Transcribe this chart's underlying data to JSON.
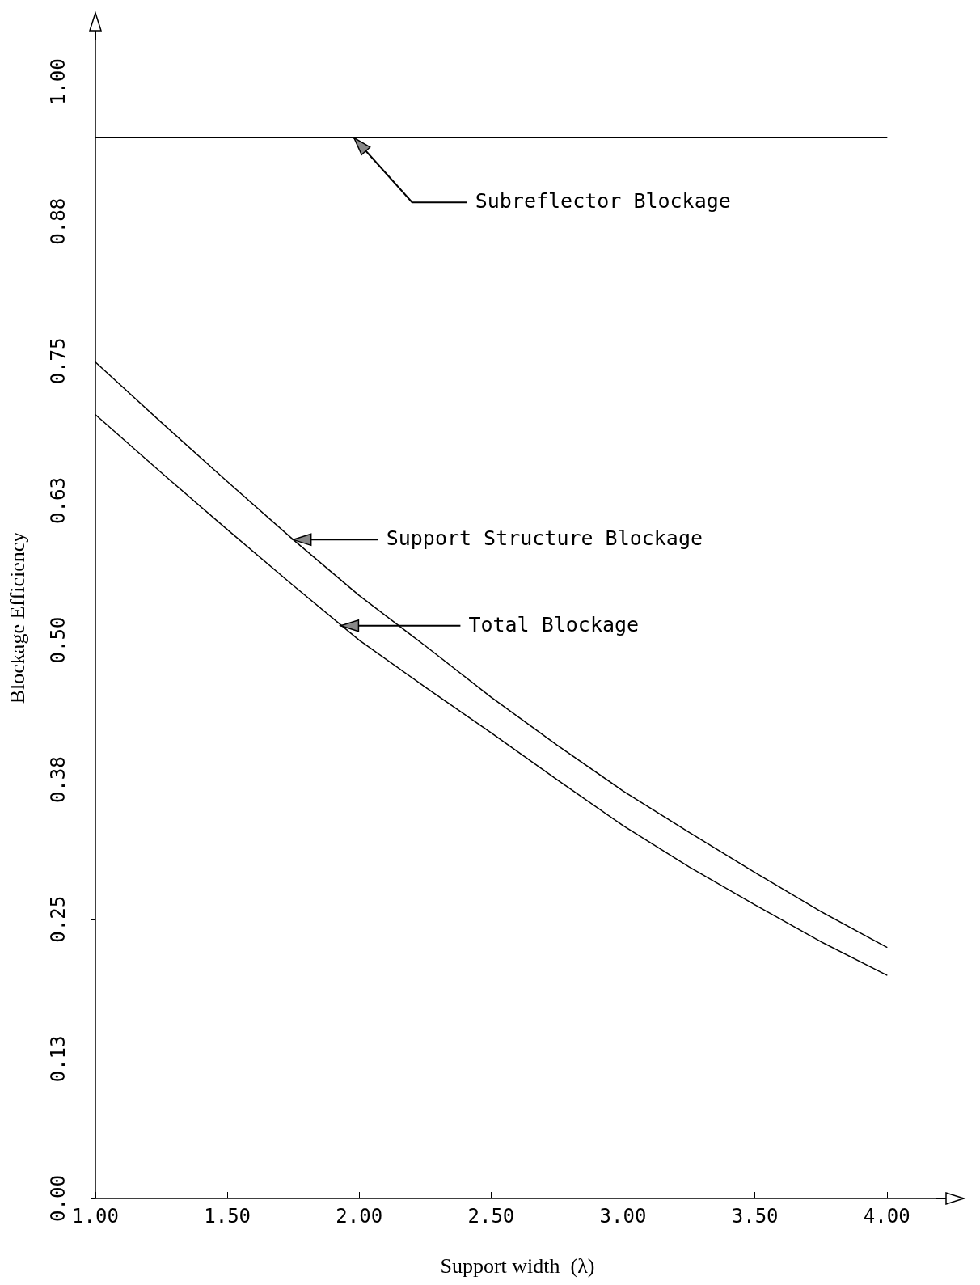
{
  "chart_data": {
    "type": "line",
    "xlabel": "Support width  (λ)",
    "ylabel": "Blockage Efficiency",
    "x": [
      1.0,
      1.25,
      1.5,
      1.75,
      2.0,
      2.25,
      2.5,
      2.75,
      3.0,
      3.25,
      3.5,
      3.75,
      4.0
    ],
    "series": [
      {
        "color": "#000000",
        "x": [
          1.0,
          4.0
        ],
        "values": [
          0.95,
          0.95
        ]
      },
      {
        "color": "#000000",
        "values": [
          0.749,
          0.695,
          0.642,
          0.59,
          0.54,
          0.495,
          0.449,
          0.406,
          0.365,
          0.328,
          0.292,
          0.257,
          0.225
        ]
      },
      {
        "color": "#000000",
        "values": [
          0.702,
          0.65,
          0.599,
          0.549,
          0.5,
          0.458,
          0.417,
          0.375,
          0.334,
          0.297,
          0.263,
          0.23,
          0.2
        ]
      }
    ],
    "annotations": [
      {
        "text": "Subreflector Blockage",
        "x": 1.98,
        "y": 0.95
      },
      "Support Structure Blockage",
      {
        "text": "Total Blockage",
        "x": 1.93,
        "y": 0.513
      }
    ],
    "xlim": [
      1.0,
      4.2
    ],
    "xticks": [
      {
        "value": 1.0,
        "label": "1.00"
      },
      {
        "value": 1.5,
        "label": "1.50"
      },
      {
        "value": 2.0,
        "label": "2.00"
      },
      {
        "value": 2.5,
        "label": "2.50"
      },
      {
        "value": 3.0,
        "label": "3.00"
      },
      {
        "value": 3.5,
        "label": "3.50"
      },
      {
        "value": 4.0,
        "label": "4.00"
      }
    ],
    "ylim": [
      0,
      1.04
    ],
    "yticks": [
      {
        "value": 0,
        "label": "0.00"
      },
      {
        "value": 0.125,
        "label": "0.13"
      },
      {
        "value": 0.25,
        "label": "0.25"
      },
      {
        "value": 0.375,
        "label": "0.38"
      },
      {
        "value": 0.5,
        "label": "0.50"
      },
      {
        "value": 0.625,
        "label": "0.63"
      },
      {
        "value": 0.75,
        "label": "0.75"
      },
      {
        "value": 0.875,
        "label": "0.88"
      },
      {
        "value": 1.0,
        "label": "1.00"
      }
    ],
    "grid": false,
    "marker": "none",
    "line_style": "solid"
  }
}
